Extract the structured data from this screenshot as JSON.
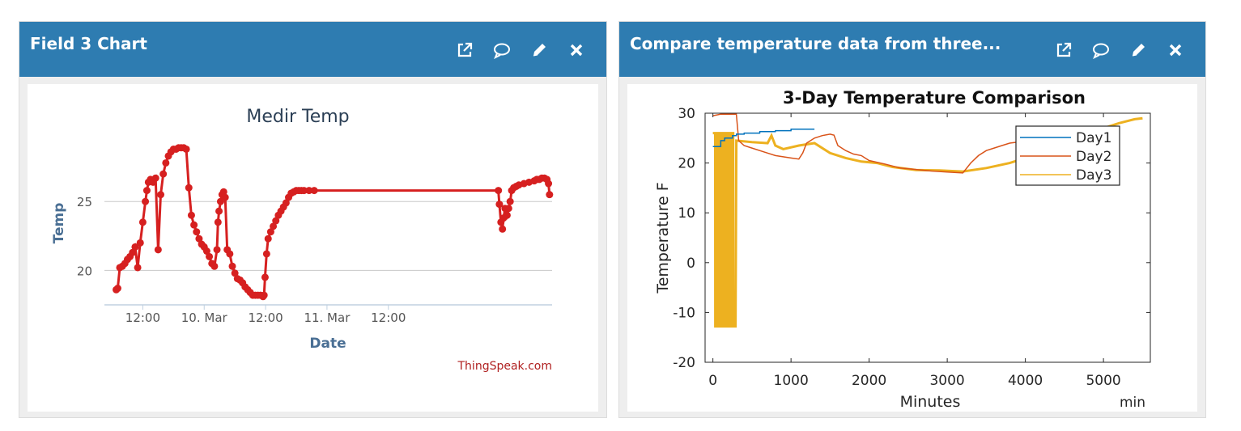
{
  "panels": [
    {
      "title": "Field 3 Chart",
      "icons": [
        "external-link-icon",
        "comment-icon",
        "edit-pencil-icon",
        "close-icon"
      ]
    },
    {
      "title": "Compare temperature data from three...",
      "icons": [
        "external-link-icon",
        "comment-icon",
        "edit-pencil-icon",
        "close-icon"
      ]
    }
  ],
  "colors": {
    "header_bg": "#2e7cb1",
    "series1": "#d62020",
    "day1": "#0072bd",
    "day2": "#d95319",
    "day3": "#edb120"
  },
  "chart_data": [
    {
      "type": "line",
      "title": "Medir Temp",
      "xlabel": "Date",
      "ylabel": "Temp",
      "x_tick_labels": [
        "12:00",
        "10. Mar",
        "12:00",
        "11. Mar",
        "12:00"
      ],
      "y_ticks": [
        20,
        25
      ],
      "ylim": [
        17.5,
        30
      ],
      "credit": "ThingSpeak.com",
      "grid": true,
      "markers": true,
      "x_unit": "hours since 00:00, 9 Mar",
      "series": [
        {
          "x": [
            9.3,
            9.6,
            10.0,
            10.5,
            11.0,
            11.5,
            12.0,
            12.5,
            13.0,
            13.5,
            14.0,
            14.5,
            15.0,
            15.3,
            15.6,
            16.0,
            16.5,
            17.0,
            17.5,
            18.0,
            18.5,
            19.0,
            19.5,
            20.0,
            20.5,
            21.0,
            21.5,
            22.0,
            22.5,
            23.0,
            23.5,
            24.0,
            24.5,
            25.0,
            25.5,
            26.0,
            26.5,
            27.0,
            27.5,
            28.0,
            28.5,
            29.0,
            29.2,
            29.4,
            29.7,
            30.0,
            30.3,
            30.6,
            31.0,
            31.5,
            32.0,
            32.5,
            33.0,
            33.5,
            34.0,
            34.5,
            35.0,
            35.5,
            36.0,
            36.5,
            37.0,
            37.5,
            38.0,
            38.2,
            38.4,
            38.7,
            39.0,
            39.5,
            40.0,
            40.5,
            41.0,
            41.5,
            42.0,
            42.5,
            43.0,
            43.5,
            44.0,
            44.5,
            45.0,
            45.5,
            46.0,
            47.0,
            48.0,
            60.0,
            72.0,
            80.0,
            84.0,
            84.2,
            84.5,
            84.8,
            85.0,
            85.3,
            85.7,
            86.0,
            86.3,
            86.6,
            87.0,
            87.5,
            88.0,
            89.0,
            90.0,
            91.0,
            91.5,
            92.0,
            92.5,
            93.0,
            93.5,
            93.8,
            94.0
          ],
          "y": [
            18.6,
            18.7,
            20.2,
            20.3,
            20.5,
            20.8,
            21.0,
            21.3,
            21.7,
            20.2,
            22.0,
            23.5,
            25.0,
            25.8,
            26.4,
            26.6,
            26.4,
            26.7,
            21.5,
            25.5,
            27.0,
            27.8,
            28.3,
            28.6,
            28.8,
            28.8,
            28.9,
            28.9,
            28.9,
            28.8,
            26.0,
            24.0,
            23.3,
            22.8,
            22.3,
            21.9,
            21.7,
            21.4,
            21.0,
            20.5,
            20.3,
            21.5,
            23.5,
            24.3,
            25.0,
            25.5,
            25.7,
            25.3,
            21.5,
            21.2,
            20.3,
            19.8,
            19.4,
            19.3,
            19.1,
            18.8,
            18.6,
            18.4,
            18.2,
            18.2,
            18.2,
            18.2,
            18.1,
            18.2,
            19.5,
            21.2,
            22.3,
            22.8,
            23.2,
            23.6,
            24.0,
            24.3,
            24.6,
            24.9,
            25.3,
            25.6,
            25.7,
            25.8,
            25.8,
            25.8,
            25.8,
            25.8,
            25.8,
            25.8,
            25.8,
            25.8,
            25.8,
            24.8,
            23.5,
            23.0,
            23.8,
            24.5,
            24.0,
            24.5,
            25.0,
            25.8,
            26.0,
            26.1,
            26.2,
            26.3,
            26.4,
            26.5,
            26.6,
            26.6,
            26.7,
            26.7,
            26.6,
            26.3,
            25.5
          ]
        }
      ]
    },
    {
      "type": "line",
      "title": "3-Day Temperature Comparison",
      "xlabel": "Minutes",
      "x_unit_label": "min",
      "ylabel": "Temperature F",
      "xlim": [
        -100,
        5600
      ],
      "ylim": [
        -20,
        30
      ],
      "x_ticks": [
        0,
        1000,
        2000,
        3000,
        4000,
        5000
      ],
      "y_ticks": [
        -20,
        -10,
        0,
        10,
        20,
        30
      ],
      "legend": "top-right",
      "grid": false,
      "series": [
        {
          "name": "Day1",
          "x": [
            0,
            100,
            101,
            150,
            151,
            250,
            251,
            300,
            301,
            400,
            401,
            600,
            601,
            800,
            801,
            1000,
            1001,
            1300
          ],
          "y": [
            23.3,
            23.3,
            24.5,
            24.5,
            25.0,
            25.0,
            25.5,
            25.5,
            25.8,
            25.8,
            26.0,
            26.0,
            26.3,
            26.3,
            26.5,
            26.5,
            26.8,
            26.8
          ]
        },
        {
          "name": "Day2",
          "x": [
            0,
            100,
            300,
            330,
            400,
            500,
            700,
            800,
            1000,
            1100,
            1150,
            1200,
            1300,
            1400,
            1500,
            1550,
            1600,
            1700,
            1800,
            1900,
            2000,
            2200,
            2400,
            2600,
            2800,
            3000,
            3200,
            3300,
            3400,
            3500,
            3600,
            3700,
            3800,
            3900,
            4000,
            4200,
            4500,
            4800
          ],
          "y": [
            29.5,
            29.8,
            29.8,
            24.5,
            23.5,
            23.0,
            22.0,
            21.5,
            21.0,
            20.8,
            22.0,
            24.0,
            25.0,
            25.5,
            25.8,
            25.6,
            23.5,
            22.5,
            21.8,
            21.5,
            20.5,
            19.8,
            19.0,
            18.7,
            18.4,
            18.2,
            18.0,
            20.0,
            21.5,
            22.5,
            23.0,
            23.5,
            24.0,
            24.2,
            24.5,
            25.0,
            25.5,
            26.0
          ]
        },
        {
          "name": "Day3",
          "x": [
            0,
            30,
            31,
            60,
            61,
            90,
            91,
            120,
            121,
            150,
            151,
            170,
            171,
            200,
            201,
            230,
            231,
            260,
            261,
            290,
            300,
            500,
            700,
            750,
            800,
            900,
            1100,
            1300,
            1500,
            1700,
            1900,
            2100,
            2300,
            2600,
            2900,
            3200,
            3500,
            3800,
            4000,
            4200,
            4500,
            4800,
            5000,
            5200,
            5400,
            5500
          ],
          "y": [
            26.0,
            26.0,
            -12.8,
            -12.8,
            26.0,
            26.0,
            -12.8,
            -12.8,
            26.0,
            26.0,
            -12.8,
            -12.8,
            26.0,
            26.0,
            -12.8,
            -12.8,
            26.0,
            26.0,
            -12.8,
            -12.8,
            24.5,
            24.2,
            24.0,
            25.5,
            23.5,
            22.8,
            23.5,
            24.0,
            22.0,
            21.0,
            20.3,
            20.0,
            19.2,
            18.6,
            18.5,
            18.3,
            19.0,
            20.0,
            21.0,
            22.0,
            23.5,
            25.0,
            27.0,
            28.0,
            28.8,
            29.0
          ]
        }
      ]
    }
  ]
}
